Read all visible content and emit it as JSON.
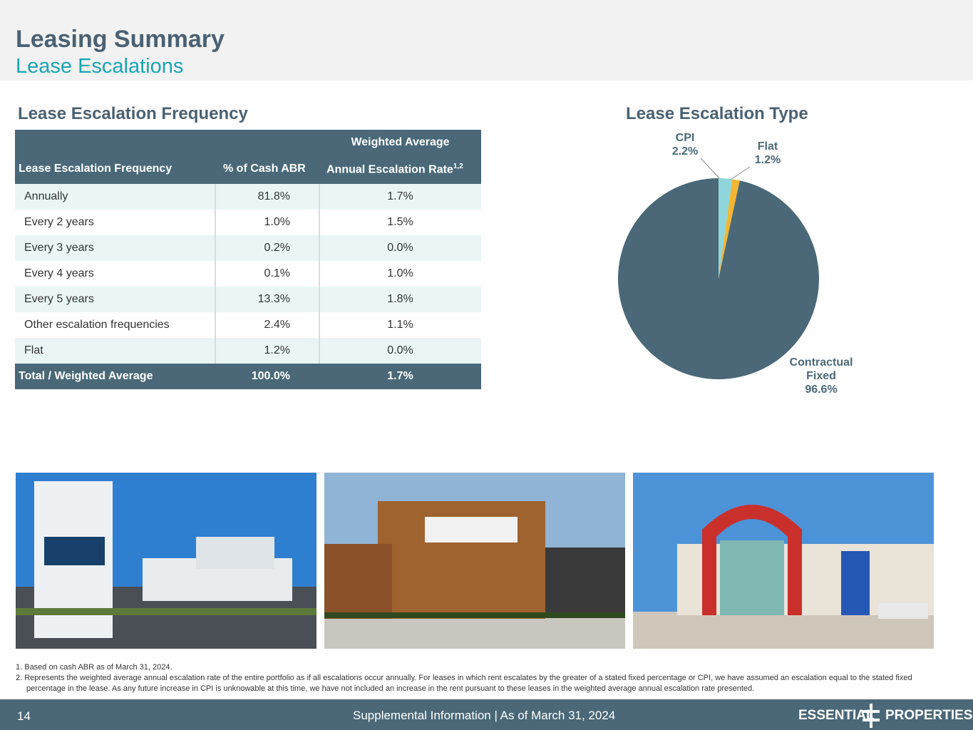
{
  "header": {
    "title": "Leasing Summary",
    "subtitle": "Lease Escalations"
  },
  "table": {
    "heading": "Lease Escalation Frequency",
    "columns": [
      "Lease Escalation Frequency",
      "% of Cash ABR",
      "Weighted Average",
      "Annual Escalation Rate",
      "1,2"
    ],
    "rows": [
      [
        "Annually",
        "81.8%",
        "1.7%"
      ],
      [
        "Every 2 years",
        "1.0%",
        "1.5%"
      ],
      [
        "Every 3 years",
        "0.2%",
        "0.0%"
      ],
      [
        "Every 4 years",
        "0.1%",
        "1.0%"
      ],
      [
        "Every 5 years",
        "13.3%",
        "1.8%"
      ],
      [
        "Other escalation frequencies",
        "2.4%",
        "1.1%"
      ],
      [
        "Flat",
        "1.2%",
        "0.0%"
      ]
    ],
    "total": [
      "Total / Weighted Average",
      "100.0%",
      "1.7%"
    ]
  },
  "chart_data": {
    "type": "pie",
    "title": "Lease Escalation Type",
    "categories": [
      "CPI",
      "Flat",
      "Contractual Fixed"
    ],
    "values": [
      2.2,
      1.2,
      96.6
    ],
    "value_labels": [
      "2.2%",
      "1.2%",
      "96.6%"
    ],
    "colors": [
      "#8fd5dc",
      "#f2b632",
      "#4a6878"
    ]
  },
  "footnotes": [
    "1.  Based on cash ABR as of March 31, 2024.",
    "2.  Represents the weighted average annual escalation rate of the entire portfolio as if all escalations occur annually. For leases in which rent escalates by the greater of a stated fixed percentage or CPI, we have assumed an escalation equal to the stated fixed percentage in the lease. As any future increase in CPI is unknowable at this time, we have not included an increase in the rent pursuant to these leases in the weighted average annual escalation rate presented."
  ],
  "footer": {
    "page": "14",
    "text": "Supplemental Information |  As of March 31, 2024",
    "logo_left": "ESSENTIAL",
    "logo_right": "PROPERTIES"
  }
}
